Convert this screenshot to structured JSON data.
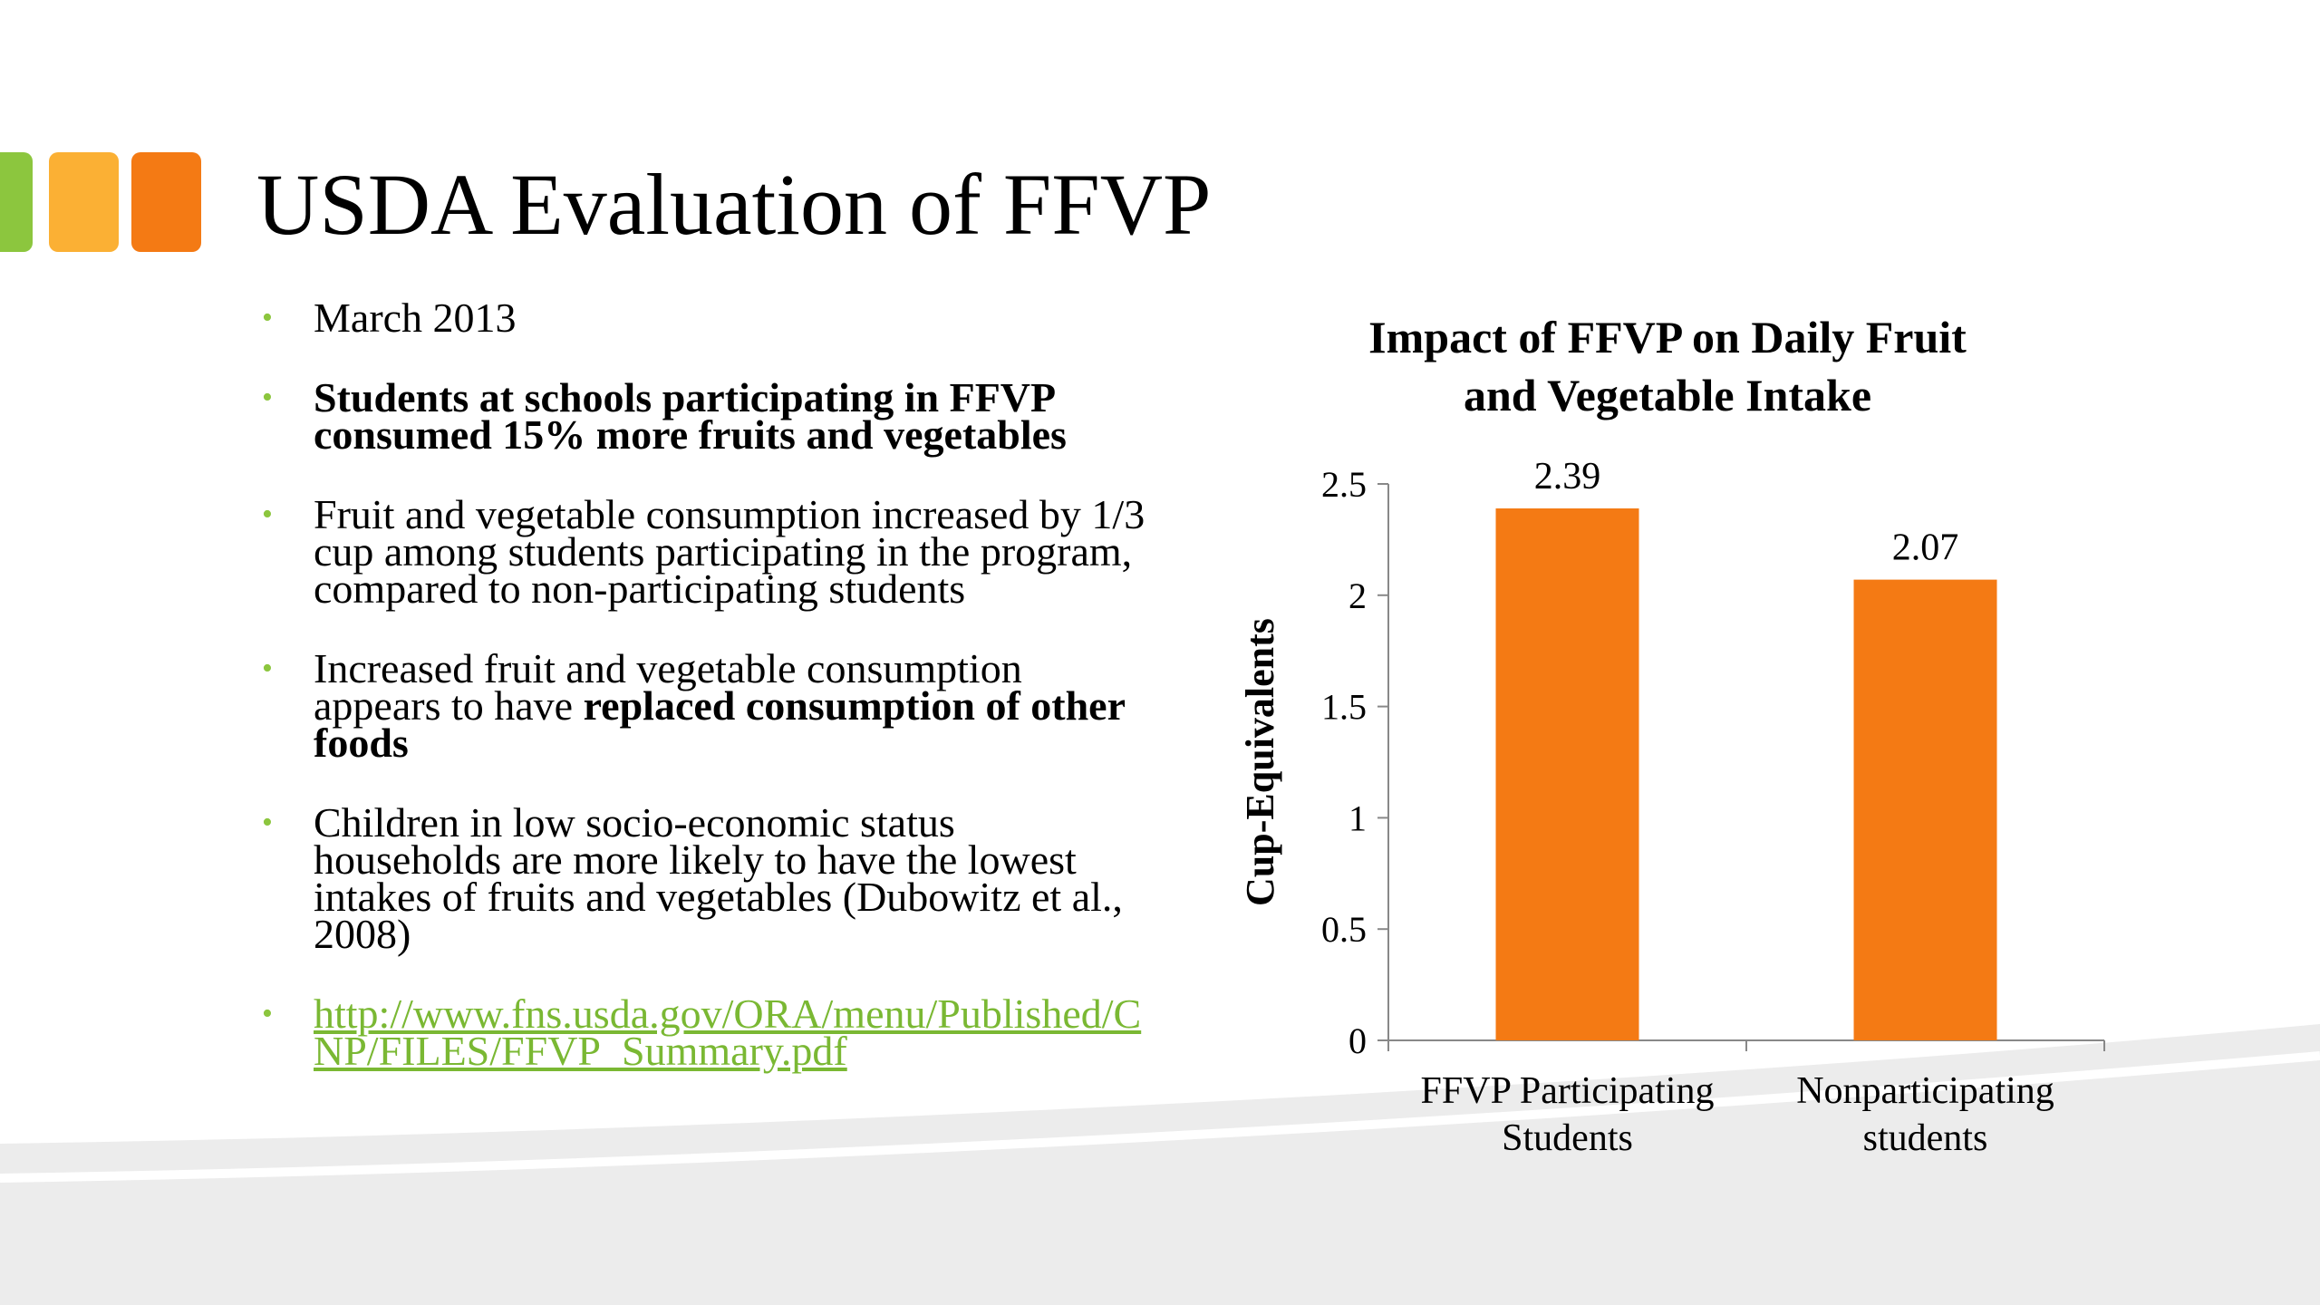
{
  "slide": {
    "title": "USDA Evaluation of FFVP",
    "bullets": [
      [
        {
          "text": "March 2013",
          "bold": false
        }
      ],
      [
        {
          "text": "Students at schools participating in FFVP consumed 15% more fruits and vegetables",
          "bold": true
        }
      ],
      [
        {
          "text": "Fruit and vegetable consumption increased by 1/3 cup among students participating in the program, compared to non-participating students",
          "bold": false
        }
      ],
      [
        {
          "text": "Increased fruit and vegetable consumption appears to have ",
          "bold": false
        },
        {
          "text": "replaced consumption of other foods",
          "bold": true
        }
      ],
      [
        {
          "text": "Children in low socio-economic status households are more likely to have the lowest intakes of fruits and vegetables (Dubowitz et al., 2008)",
          "bold": false
        }
      ]
    ],
    "link": "http://www.fns.usda.gov/ORA/menu/Published/CNP/FILES/FFVP_Summary.pdf"
  },
  "chart_data": {
    "type": "bar",
    "title": "Impact of FFVP on Daily Fruit and Vegetable Intake",
    "y_label": "Cup-Equivalents",
    "categories": [
      "FFVP Participating Students",
      "Nonparticipating students"
    ],
    "values": [
      2.39,
      2.07
    ],
    "color": "#f47a14",
    "ylim": [
      0,
      2.5
    ],
    "yticks": [
      0,
      0.5,
      1,
      1.5,
      2,
      2.5
    ],
    "grid": false
  }
}
